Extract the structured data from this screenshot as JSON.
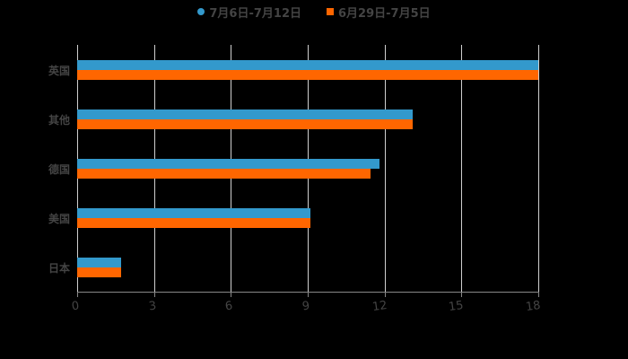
{
  "chart_data": {
    "type": "bar",
    "orientation": "horizontal",
    "title": "",
    "categories": [
      "英国",
      "其他",
      "德国",
      "美国",
      "日本"
    ],
    "series": [
      {
        "name": "7月6日-7月12日",
        "color": "#3399cc",
        "values": [
          18,
          13.1,
          11.8,
          9.1,
          1.7
        ]
      },
      {
        "name": "6月29日-7月5日",
        "color": "#ff6600",
        "values": [
          18,
          13.1,
          11.45,
          9.1,
          1.7
        ]
      }
    ],
    "xlabel": "",
    "ylabel": "",
    "xlim": [
      0,
      18
    ],
    "xticks": [
      "0",
      "3",
      "6",
      "9",
      "12",
      "15",
      "18"
    ],
    "grid": true,
    "legend_position": "top"
  },
  "legend": {
    "series1": "7月6日-7月12日",
    "series2": "6月29日-7月5日"
  },
  "axis": {
    "ticks": [
      "0",
      "3",
      "6",
      "9",
      "12",
      "15",
      "18"
    ]
  },
  "categories": [
    "英国",
    "其他",
    "德国",
    "美国",
    "日本"
  ]
}
